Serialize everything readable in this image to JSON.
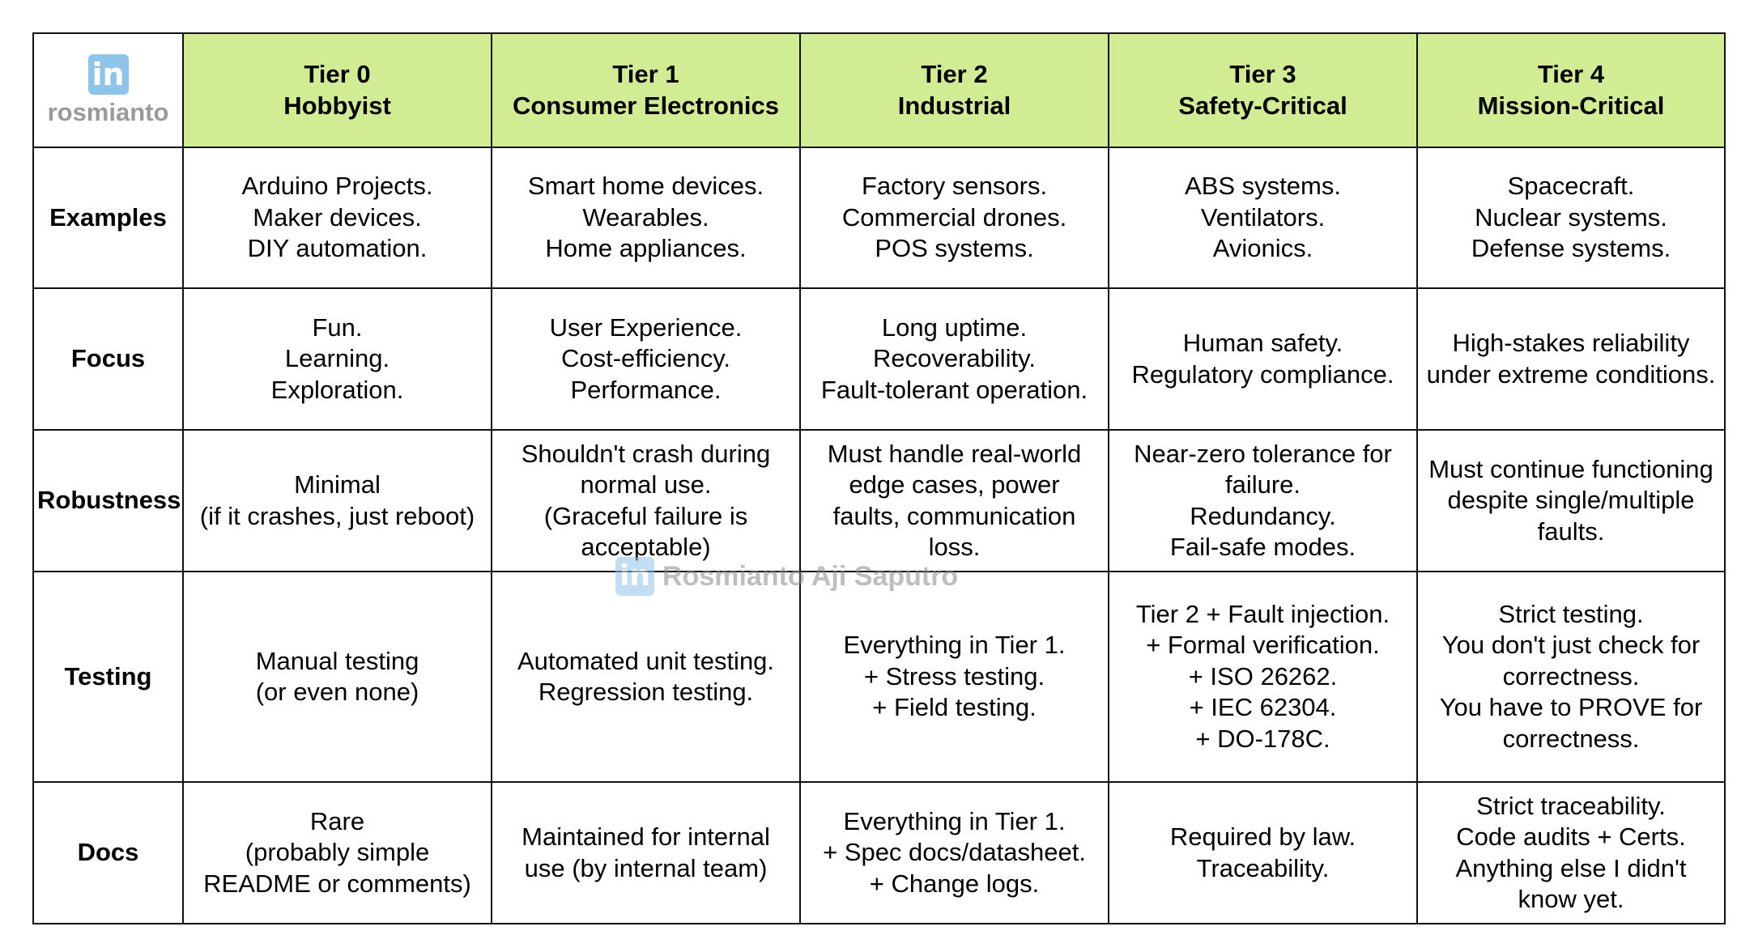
{
  "brand": {
    "logo_glyph": "in",
    "logo_text": "rosmianto",
    "watermark_glyph": "in",
    "watermark_text": "Rosmianto Aji Saputro",
    "header_color": "#d2ec94",
    "logo_color": "#8fc4ea"
  },
  "tiers": [
    {
      "tier": "Tier 0",
      "name": "Hobbyist"
    },
    {
      "tier": "Tier 1",
      "name": "Consumer Electronics"
    },
    {
      "tier": "Tier 2",
      "name": "Industrial"
    },
    {
      "tier": "Tier 3",
      "name": "Safety-Critical"
    },
    {
      "tier": "Tier 4",
      "name": "Mission-Critical"
    }
  ],
  "rows": [
    {
      "label": "Examples",
      "cells": [
        [
          "Arduino Projects.",
          "Maker devices.",
          "DIY automation."
        ],
        [
          "Smart home devices.",
          "Wearables.",
          "Home appliances."
        ],
        [
          "Factory sensors.",
          "Commercial drones.",
          "POS systems."
        ],
        [
          "ABS systems.",
          "Ventilators.",
          "Avionics."
        ],
        [
          "Spacecraft.",
          "Nuclear systems.",
          "Defense systems."
        ]
      ]
    },
    {
      "label": "Focus",
      "cells": [
        [
          "Fun.",
          "Learning.",
          "Exploration."
        ],
        [
          "User Experience.",
          "Cost-efficiency.",
          "Performance."
        ],
        [
          "Long uptime.",
          "Recoverability.",
          "Fault-tolerant operation."
        ],
        [
          "Human safety.",
          "Regulatory compliance."
        ],
        [
          "High-stakes reliability",
          "under extreme conditions."
        ]
      ]
    },
    {
      "label": "Robustness",
      "cells": [
        [
          "Minimal",
          "(if it crashes, just reboot)"
        ],
        [
          "Shouldn't crash during",
          "normal use.",
          "(Graceful failure is",
          "acceptable)"
        ],
        [
          "Must handle real-world",
          "edge cases, power",
          "faults, communication",
          "loss."
        ],
        [
          "Near-zero tolerance for",
          "failure.",
          "Redundancy.",
          "Fail-safe modes."
        ],
        [
          "Must continue functioning",
          "despite single/multiple",
          "faults."
        ]
      ]
    },
    {
      "label": "Testing",
      "cells": [
        [
          "Manual testing",
          "(or even none)"
        ],
        [
          "Automated unit testing.",
          "Regression testing."
        ],
        [
          "Everything in Tier 1.",
          "+ Stress testing.",
          "+ Field testing."
        ],
        [
          "Tier 2 + Fault injection.",
          "+ Formal verification.",
          "+ ISO 26262.",
          "+ IEC 62304.",
          "+ DO-178C."
        ],
        [
          "Strict testing.",
          "You don't just check for",
          "correctness.",
          "You have to PROVE for",
          "correctness."
        ]
      ]
    },
    {
      "label": "Docs",
      "cells": [
        [
          "Rare",
          "(probably simple",
          "README or comments)"
        ],
        [
          "Maintained for internal",
          "use (by internal team)"
        ],
        [
          "Everything in Tier 1.",
          "+ Spec docs/datasheet.",
          "+ Change logs."
        ],
        [
          "Required by law.",
          "Traceability."
        ],
        [
          "Strict traceability.",
          "Code audits + Certs.",
          "Anything else I didn't",
          "know yet."
        ]
      ]
    }
  ]
}
